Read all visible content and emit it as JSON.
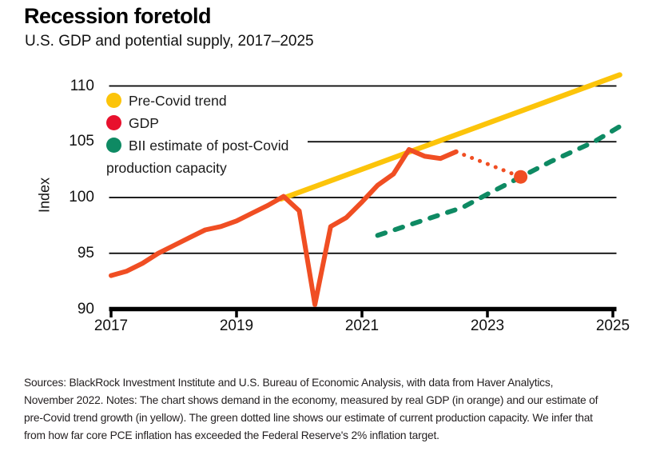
{
  "header": {
    "title": "Recession foretold",
    "subtitle": "U.S. GDP and potential supply, 2017–2025"
  },
  "colors": {
    "trend_yellow": "#FCC40A",
    "gdp_orange": "#F04E23",
    "legend_red": "#E8112D",
    "capacity_green": "#0E8A63",
    "axis_black": "#000000"
  },
  "legend": {
    "items": [
      {
        "id": "pre-covid-trend",
        "label": "Pre-Covid trend",
        "color": "#FCC40A"
      },
      {
        "id": "gdp",
        "label": "GDP",
        "color": "#E8112D"
      },
      {
        "id": "bii-estimate",
        "label": "BII estimate of post-Covid\nproduction capacity",
        "color": "#0E8A63"
      }
    ]
  },
  "chart_data": {
    "type": "line",
    "title": "Recession foretold",
    "subtitle": "U.S. GDP and potential supply, 2017–2025",
    "xlabel": "",
    "ylabel": "Index",
    "x_ticks": [
      2017,
      2019,
      2021,
      2023,
      2025
    ],
    "y_ticks": [
      110,
      105,
      100,
      95,
      90
    ],
    "xlim": [
      2016.97,
      2025.06
    ],
    "ylim": [
      90,
      111.5
    ],
    "grid": "horizontal-black",
    "legend_position": "top-left-inside",
    "series": [
      {
        "name": "Pre-Covid trend",
        "style": "solid",
        "color": "#FCC40A",
        "width": 6.5,
        "points": [
          [
            2019.71,
            99.87
          ],
          [
            2025.11,
            111.0
          ]
        ]
      },
      {
        "name": "GDP",
        "style": "solid",
        "color": "#F04E23",
        "width": 6,
        "points": [
          [
            2017.0,
            93.0
          ],
          [
            2017.25,
            93.4
          ],
          [
            2017.5,
            94.1
          ],
          [
            2017.75,
            95.0
          ],
          [
            2018.0,
            95.7
          ],
          [
            2018.25,
            96.4
          ],
          [
            2018.5,
            97.1
          ],
          [
            2018.75,
            97.4
          ],
          [
            2019.0,
            97.9
          ],
          [
            2019.25,
            98.6
          ],
          [
            2019.5,
            99.3
          ],
          [
            2019.75,
            100.1
          ],
          [
            2020.0,
            98.8
          ],
          [
            2020.25,
            90.4
          ],
          [
            2020.5,
            97.4
          ],
          [
            2020.75,
            98.2
          ],
          [
            2021.0,
            99.6
          ],
          [
            2021.25,
            101.1
          ],
          [
            2021.5,
            102.1
          ],
          [
            2021.75,
            104.3
          ],
          [
            2022.0,
            103.7
          ],
          [
            2022.25,
            103.5
          ],
          [
            2022.5,
            104.1
          ]
        ]
      },
      {
        "name": "GDP projection (dotted)",
        "style": "dotted",
        "color": "#F04E23",
        "width": 5,
        "points": [
          [
            2022.5,
            104.1
          ],
          [
            2023.53,
            101.85
          ]
        ]
      },
      {
        "name": "BII estimate of post-Covid production capacity",
        "style": "dashed",
        "color": "#0E8A63",
        "width": 6,
        "points": [
          [
            2021.25,
            96.6
          ],
          [
            2022.0,
            98.0
          ],
          [
            2022.6,
            99.1
          ],
          [
            2023.0,
            100.3
          ],
          [
            2023.5,
            101.75
          ],
          [
            2024.0,
            103.2
          ],
          [
            2024.7,
            105.0
          ],
          [
            2025.12,
            106.4
          ]
        ]
      },
      {
        "name": "GDP projection endpoint",
        "style": "marker",
        "color": "#F04E23",
        "radius": 8.5,
        "points": [
          [
            2023.53,
            101.85
          ]
        ]
      }
    ]
  },
  "footer": {
    "lines": [
      "Sources: BlackRock Investment Institute and U.S. Bureau of Economic Analysis, with data from Haver Analytics,",
      "November 2022. Notes: The chart shows demand in the economy, measured by real GDP (in orange) and our estimate of",
      "pre-Covid trend growth (in yellow). The green dotted line shows our estimate of current production capacity. We infer that",
      "from how far core PCE inflation has exceeded the Federal Reserve's 2% inflation target."
    ]
  }
}
